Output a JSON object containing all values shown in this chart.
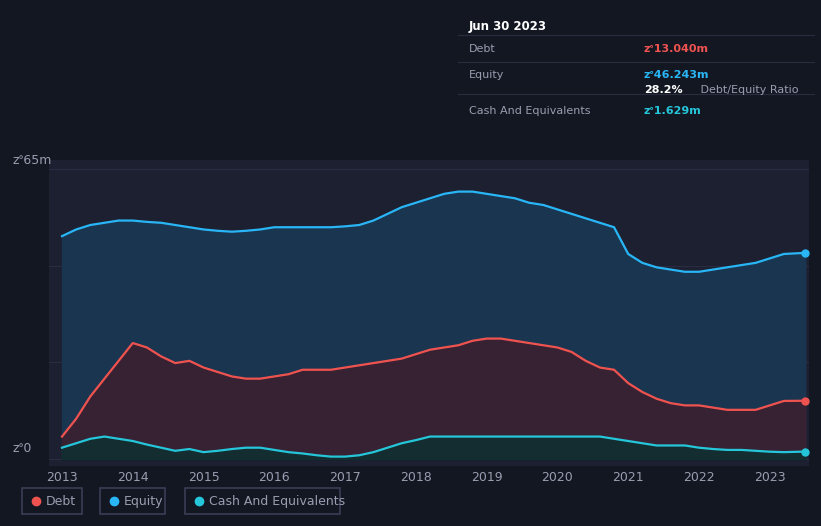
{
  "bg_color": "#131722",
  "plot_bg_color": "#1c2030",
  "grid_color": "#2a2e45",
  "text_color": "#9a9db0",
  "equity_color": "#29b6f6",
  "debt_color": "#ef5350",
  "cash_color": "#26c6da",
  "equity_fill": "#1a3550",
  "debt_fill": "#3d1f2e",
  "cash_fill": "#0d3030",
  "ylabel_top": "zᐤ65m",
  "ylabel_bottom": "zᐤ0",
  "x_labels": [
    "2013",
    "2014",
    "2015",
    "2016",
    "2017",
    "2018",
    "2019",
    "2020",
    "2021",
    "2022",
    "2023"
  ],
  "tooltip_title": "Jun 30 2023",
  "tooltip_debt_label": "Debt",
  "tooltip_debt_value": "zᐤ13.040m",
  "tooltip_equity_label": "Equity",
  "tooltip_equity_value": "zᐤ46.243m",
  "tooltip_ratio_bold": "28.2%",
  "tooltip_ratio_light": " Debt/Equity Ratio",
  "tooltip_cash_label": "Cash And Equivalents",
  "tooltip_cash_value": "zᐤ1.629m",
  "legend_items": [
    "Debt",
    "Equity",
    "Cash And Equivalents"
  ],
  "legend_colors": [
    "#ef5350",
    "#29b6f6",
    "#26c6da"
  ],
  "years": [
    2013.0,
    2013.2,
    2013.4,
    2013.6,
    2013.8,
    2014.0,
    2014.2,
    2014.4,
    2014.6,
    2014.8,
    2015.0,
    2015.2,
    2015.4,
    2015.6,
    2015.8,
    2016.0,
    2016.2,
    2016.4,
    2016.6,
    2016.8,
    2017.0,
    2017.2,
    2017.4,
    2017.6,
    2017.8,
    2018.0,
    2018.2,
    2018.4,
    2018.6,
    2018.8,
    2019.0,
    2019.2,
    2019.4,
    2019.6,
    2019.8,
    2020.0,
    2020.2,
    2020.4,
    2020.6,
    2020.8,
    2021.0,
    2021.2,
    2021.4,
    2021.6,
    2021.8,
    2022.0,
    2022.2,
    2022.4,
    2022.6,
    2022.8,
    2023.0,
    2023.2,
    2023.5
  ],
  "equity": [
    50.0,
    51.5,
    52.5,
    53.0,
    53.5,
    53.5,
    53.2,
    53.0,
    52.5,
    52.0,
    51.5,
    51.2,
    51.0,
    51.2,
    51.5,
    52.0,
    52.0,
    52.0,
    52.0,
    52.0,
    52.2,
    52.5,
    53.5,
    55.0,
    56.5,
    57.5,
    58.5,
    59.5,
    60.0,
    60.0,
    59.5,
    59.0,
    58.5,
    57.5,
    57.0,
    56.0,
    55.0,
    54.0,
    53.0,
    52.0,
    46.0,
    44.0,
    43.0,
    42.5,
    42.0,
    42.0,
    42.5,
    43.0,
    43.5,
    44.0,
    45.0,
    46.0,
    46.243
  ],
  "debt": [
    5.0,
    9.0,
    14.0,
    18.0,
    22.0,
    26.0,
    25.0,
    23.0,
    21.5,
    22.0,
    20.5,
    19.5,
    18.5,
    18.0,
    18.0,
    18.5,
    19.0,
    20.0,
    20.0,
    20.0,
    20.5,
    21.0,
    21.5,
    22.0,
    22.5,
    23.5,
    24.5,
    25.0,
    25.5,
    26.5,
    27.0,
    27.0,
    26.5,
    26.0,
    25.5,
    25.0,
    24.0,
    22.0,
    20.5,
    20.0,
    17.0,
    15.0,
    13.5,
    12.5,
    12.0,
    12.0,
    11.5,
    11.0,
    11.0,
    11.0,
    12.0,
    13.0,
    13.04
  ],
  "cash": [
    2.5,
    3.5,
    4.5,
    5.0,
    4.5,
    4.0,
    3.2,
    2.5,
    1.8,
    2.2,
    1.5,
    1.8,
    2.2,
    2.5,
    2.5,
    2.0,
    1.5,
    1.2,
    0.8,
    0.5,
    0.5,
    0.8,
    1.5,
    2.5,
    3.5,
    4.2,
    5.0,
    5.0,
    5.0,
    5.0,
    5.0,
    5.0,
    5.0,
    5.0,
    5.0,
    5.0,
    5.0,
    5.0,
    5.0,
    4.5,
    4.0,
    3.5,
    3.0,
    3.0,
    3.0,
    2.5,
    2.2,
    2.0,
    2.0,
    1.8,
    1.6,
    1.5,
    1.629
  ]
}
